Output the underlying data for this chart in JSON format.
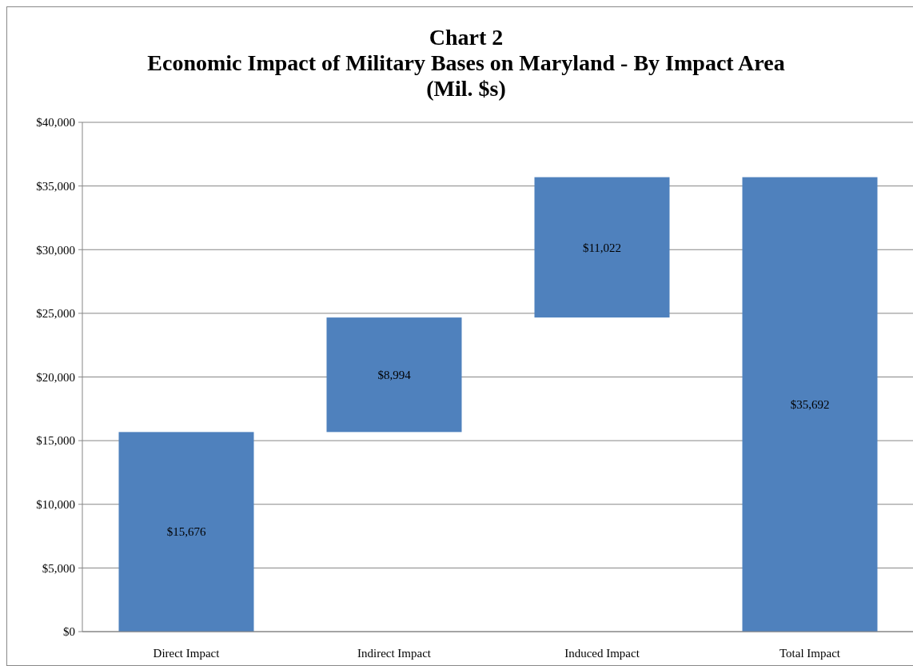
{
  "chart_data": {
    "type": "bar",
    "title": "Chart 2\nEconomic Impact of Military Bases on Maryland - By Impact Area\n(Mil. $s)",
    "categories": [
      "Direct Impact",
      "Indirect Impact",
      "Induced Impact",
      "Total Impact"
    ],
    "values": [
      15676,
      8994,
      11022,
      35692
    ],
    "base": [
      0,
      15676,
      24670,
      0
    ],
    "value_labels": [
      "$15,676",
      "$8,994",
      "$11,022",
      "$35,692"
    ],
    "color": "#4f81bd",
    "ylim": [
      0,
      40000
    ],
    "yticks": [
      {
        "value": 0,
        "label": "$0"
      },
      {
        "value": 5000,
        "label": "$5,000"
      },
      {
        "value": 10000,
        "label": "$10,000"
      },
      {
        "value": 15000,
        "label": "$15,000"
      },
      {
        "value": 20000,
        "label": "$20,000"
      },
      {
        "value": 25000,
        "label": "$25,000"
      },
      {
        "value": 30000,
        "label": "$30,000"
      },
      {
        "value": 35000,
        "label": "$35,000"
      },
      {
        "value": 40000,
        "label": "$40,000"
      }
    ],
    "grid": "y"
  }
}
